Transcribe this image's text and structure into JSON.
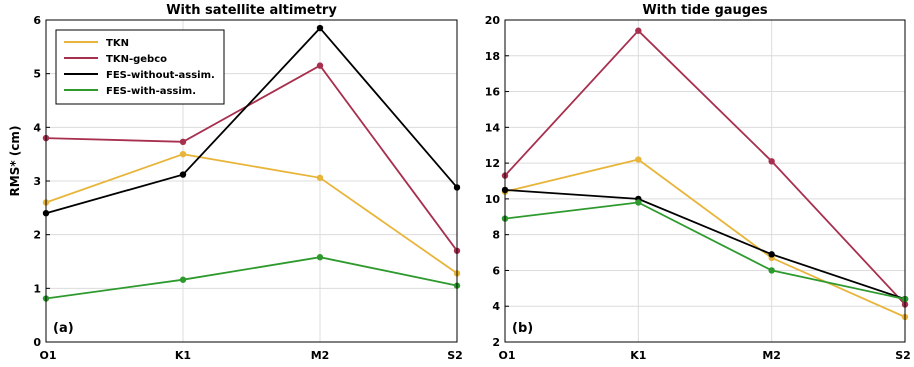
{
  "chart_data": [
    {
      "type": "line",
      "title": "With satellite altimetry",
      "panel_label": "(a)",
      "ylabel": "RMS* (cm)",
      "xlabel": "",
      "categories": [
        "O1",
        "K1",
        "M2",
        "S2"
      ],
      "ylim": [
        0,
        6
      ],
      "yticks": [
        0,
        1,
        2,
        3,
        4,
        5,
        6
      ],
      "grid": true,
      "legend_position": "top-left",
      "series": [
        {
          "name": "TKN",
          "color": "#e8b53a",
          "values": [
            2.6,
            3.5,
            3.06,
            1.28
          ]
        },
        {
          "name": "TKN-gebco",
          "color": "#a8304f",
          "values": [
            3.8,
            3.73,
            5.15,
            1.7
          ]
        },
        {
          "name": "FES-without-assim.",
          "color": "#000000",
          "values": [
            2.4,
            3.12,
            5.85,
            2.88
          ]
        },
        {
          "name": "FES-with-assim.",
          "color": "#2e9a2e",
          "values": [
            0.81,
            1.16,
            1.58,
            1.05
          ]
        }
      ]
    },
    {
      "type": "line",
      "title": "With tide gauges",
      "panel_label": "(b)",
      "ylabel": "",
      "xlabel": "",
      "categories": [
        "O1",
        "K1",
        "M2",
        "S2"
      ],
      "ylim": [
        2,
        20
      ],
      "yticks": [
        2,
        4,
        6,
        8,
        10,
        12,
        14,
        16,
        18,
        20
      ],
      "grid": true,
      "series": [
        {
          "name": "TKN",
          "color": "#e8b53a",
          "values": [
            10.4,
            12.2,
            6.7,
            3.4
          ]
        },
        {
          "name": "TKN-gebco",
          "color": "#a8304f",
          "values": [
            11.3,
            19.4,
            12.1,
            4.1
          ]
        },
        {
          "name": "FES-without-assim.",
          "color": "#000000",
          "values": [
            10.5,
            10.0,
            6.9,
            4.4
          ]
        },
        {
          "name": "FES-with-assim.",
          "color": "#2e9a2e",
          "values": [
            8.9,
            9.8,
            6.0,
            4.4
          ]
        }
      ]
    }
  ]
}
